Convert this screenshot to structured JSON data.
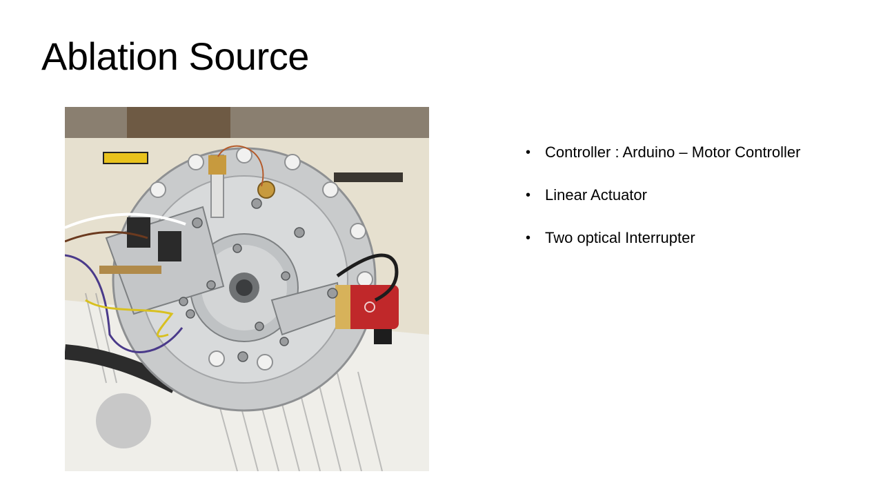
{
  "slide": {
    "title": "Ablation Source",
    "bullets": [
      "Controller  : Arduino – Motor Controller",
      "Linear Actuator",
      "Two optical Interrupter"
    ],
    "bullet_glyph": "•",
    "photo": {
      "alt": "Photo of the ablation source assembly: circular steel flange with linear actuator, optical interrupters and red motor"
    },
    "colors": {
      "background": "#ffffff",
      "text": "#000000"
    }
  }
}
